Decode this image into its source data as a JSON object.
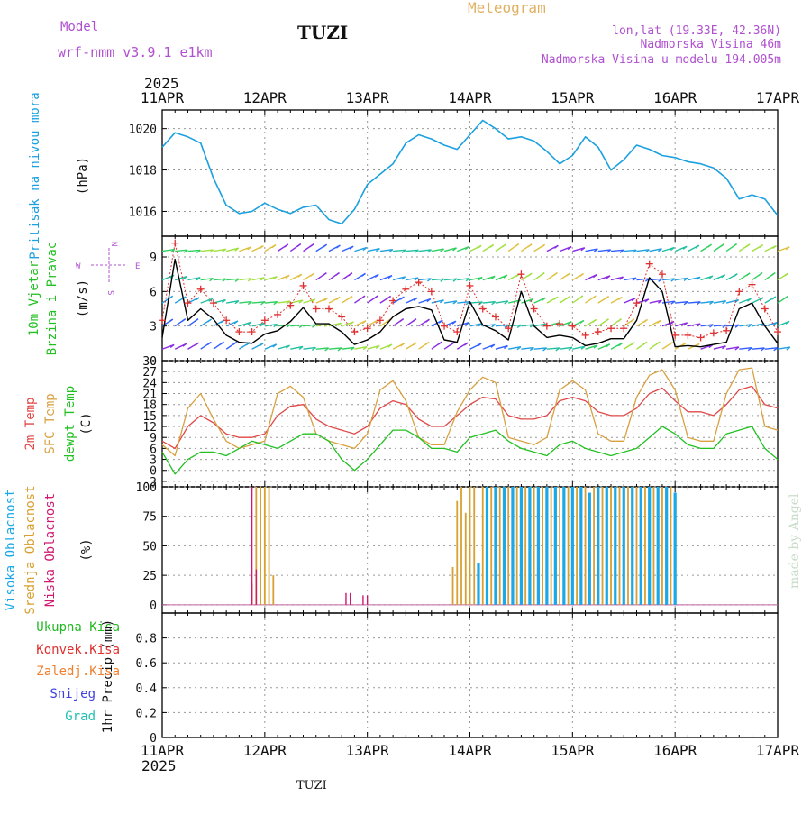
{
  "header": {
    "model_label": "Model",
    "model_name": "wrf-nmm_v3.9.1 e1km",
    "station_title": "TUZI",
    "product_title": "Meteogram",
    "lonlat": "lon,lat (19.33E, 42.36N)",
    "elevation": "Nadmorska Visina 46m",
    "model_elevation": "Nadmorska Visina u modelu 194.005m",
    "year": "2025",
    "footer_station": "TUZI",
    "credit": "made by Angel"
  },
  "colors": {
    "pressure": "#1ba0e0",
    "wind_speed": "#000000",
    "gust_marker": "#e03030",
    "temp_2m": "#e04848",
    "temp_sfc": "#d8a040",
    "dewpoint": "#22c022",
    "cloud_high": "#1aa8e8",
    "cloud_mid": "#d8a030",
    "cloud_low": "#d01870",
    "precip_total": "#22b822",
    "precip_conv": "#e03030",
    "precip_frozen": "#f08030",
    "snow": "#4040e0",
    "graupel": "#20c0b0",
    "header_purple": "#b050d0",
    "header_gold": "#e0b060"
  },
  "time_axis": {
    "labels": [
      "11APR",
      "12APR",
      "13APR",
      "14APR",
      "15APR",
      "16APR",
      "17APR"
    ]
  },
  "panels": {
    "pressure": {
      "ylabel_1": "Pritisak na nivou mora",
      "unit": "(hPa)"
    },
    "wind": {
      "ylabel_1": "10m Vjetar",
      "ylabel_2": "Brzina i Pravac",
      "unit": "(m/s)",
      "compass_w": "W",
      "compass_e": "E",
      "compass_n": "N",
      "compass_s": "S"
    },
    "temp": {
      "ylabel_1": "2m Temp",
      "ylabel_2": "SFC Temp",
      "ylabel_3": "dewpt Temp",
      "unit": "(C)"
    },
    "cloud": {
      "ylabel_1": "Visoka Oblacnost",
      "ylabel_2": "Srednja Oblacnost",
      "ylabel_3": "Niska Oblacnost",
      "unit": "(%)"
    },
    "precip": {
      "legend": [
        "Ukupna Kisa",
        "Konvek.Kisa",
        "Zaledj.Kisa",
        "Snijeg",
        "Grad"
      ],
      "ylabel": "1hr Precip (mm)"
    }
  },
  "chart_data": [
    {
      "type": "line",
      "title": "",
      "ylabel": "Pritisak na nivou mora (hPa)",
      "ylim": [
        1014.8,
        1020.9
      ],
      "yticks": [
        "1016",
        "1018",
        "1020"
      ],
      "x_hours": [
        0,
        3,
        6,
        9,
        12,
        15,
        18,
        21,
        24,
        27,
        30,
        33,
        36,
        39,
        42,
        45,
        48,
        51,
        54,
        57,
        60,
        63,
        66,
        69,
        72,
        75,
        78,
        81,
        84,
        87,
        90,
        93,
        96,
        99,
        102,
        105,
        108,
        111,
        114,
        117,
        120,
        123,
        126,
        129,
        132,
        135,
        138,
        141,
        144
      ],
      "series": [
        {
          "values": [
            1019.1,
            1019.8,
            1019.6,
            1019.3,
            1017.6,
            1016.3,
            1015.9,
            1016.0,
            1016.4,
            1016.1,
            1015.9,
            1016.2,
            1016.3,
            1015.6,
            1015.4,
            1016.1,
            1017.3,
            1017.8,
            1018.3,
            1019.3,
            1019.7,
            1019.5,
            1019.2,
            1019.0,
            1019.7,
            1020.4,
            1020.0,
            1019.5,
            1019.6,
            1019.4,
            1018.9,
            1018.3,
            1018.7,
            1019.6,
            1019.1,
            1018.0,
            1018.5,
            1019.2,
            1019.0,
            1018.7,
            1018.6,
            1018.4,
            1018.3,
            1018.1,
            1017.6,
            1016.6,
            1016.8,
            1016.6,
            1015.8
          ]
        }
      ]
    },
    {
      "type": "line",
      "title": "",
      "ylabel": "10m Vjetar Brzina i Pravac (m/s)",
      "ylim": [
        0,
        10.8
      ],
      "yticks": [
        "0",
        "3",
        "6",
        "9"
      ],
      "x_hours": [
        0,
        3,
        6,
        9,
        12,
        15,
        18,
        21,
        24,
        27,
        30,
        33,
        36,
        39,
        42,
        45,
        48,
        51,
        54,
        57,
        60,
        63,
        66,
        69,
        72,
        75,
        78,
        81,
        84,
        87,
        90,
        93,
        96,
        99,
        102,
        105,
        108,
        111,
        114,
        117,
        120,
        123,
        126,
        129,
        132,
        135,
        138,
        141,
        144
      ],
      "series": [
        {
          "name": "wind speed",
          "values": [
            2.0,
            8.8,
            3.5,
            4.5,
            3.6,
            2.2,
            1.6,
            1.5,
            2.3,
            2.6,
            3.4,
            4.6,
            3.2,
            3.2,
            2.5,
            1.4,
            1.8,
            2.5,
            3.8,
            4.5,
            4.7,
            4.4,
            1.8,
            1.6,
            5.1,
            3.1,
            2.6,
            1.8,
            6.0,
            3.0,
            2.0,
            2.2,
            2.0,
            1.3,
            1.5,
            1.9,
            1.9,
            3.5,
            7.2,
            6.0,
            1.2,
            1.3,
            1.2,
            1.4,
            1.6,
            4.5,
            5.0,
            3.0,
            1.5
          ]
        },
        {
          "name": "gusts",
          "values": [
            3.5,
            10.2,
            5.0,
            6.2,
            5.0,
            3.5,
            2.5,
            2.5,
            3.5,
            4.0,
            4.8,
            6.5,
            4.5,
            4.5,
            3.8,
            2.5,
            2.8,
            3.5,
            5.2,
            6.2,
            6.8,
            6.0,
            3.0,
            2.5,
            6.5,
            4.5,
            3.8,
            2.8,
            7.5,
            4.5,
            3.0,
            3.2,
            3.0,
            2.2,
            2.5,
            2.8,
            2.8,
            5.0,
            8.4,
            7.5,
            2.2,
            2.2,
            2.0,
            2.4,
            2.6,
            6.0,
            6.6,
            4.5,
            2.5
          ]
        }
      ]
    },
    {
      "type": "line",
      "title": "",
      "ylabel": "2m Temp / SFC Temp / dewpt Temp (C)",
      "ylim": [
        -4.5,
        30
      ],
      "yticks": [
        "-3",
        "0",
        "3",
        "6",
        "9",
        "12",
        "15",
        "18",
        "21",
        "24",
        "27",
        "30"
      ],
      "x_hours": [
        0,
        3,
        6,
        9,
        12,
        15,
        18,
        21,
        24,
        27,
        30,
        33,
        36,
        39,
        42,
        45,
        48,
        51,
        54,
        57,
        60,
        63,
        66,
        69,
        72,
        75,
        78,
        81,
        84,
        87,
        90,
        93,
        96,
        99,
        102,
        105,
        108,
        111,
        114,
        117,
        120,
        123,
        126,
        129,
        132,
        135,
        138,
        141,
        144
      ],
      "series": [
        {
          "name": "2m Temp",
          "values": [
            8,
            6,
            12,
            15,
            13,
            10,
            9,
            9,
            10,
            15,
            17.5,
            18,
            14,
            12,
            11,
            10,
            12,
            17,
            19,
            18,
            14,
            12,
            12,
            15,
            18,
            20,
            19.5,
            15,
            14,
            14,
            15,
            19,
            20,
            19,
            16,
            15,
            15,
            17,
            21,
            22.5,
            19,
            16,
            16,
            15,
            18,
            22,
            23,
            18,
            17
          ]
        },
        {
          "name": "SFC Temp",
          "values": [
            7,
            4,
            17,
            21,
            14,
            8,
            6,
            7,
            8,
            21,
            23,
            20,
            10,
            8,
            7,
            6,
            10,
            22,
            24.5,
            19,
            9,
            7,
            7,
            16,
            22,
            25.5,
            24,
            9,
            8,
            7,
            9,
            22,
            24.5,
            22,
            10,
            8,
            8,
            20,
            26,
            27.5,
            22,
            9,
            8,
            8,
            21,
            27.5,
            28,
            12,
            11
          ]
        },
        {
          "name": "dewpt Temp",
          "values": [
            5,
            -1,
            3,
            5,
            5,
            4,
            6,
            8,
            7,
            6,
            8,
            10,
            10,
            8,
            3,
            0,
            3,
            7,
            11,
            11,
            9,
            6,
            6,
            5,
            9,
            10,
            11,
            8,
            6,
            5,
            4,
            7,
            8,
            6,
            5,
            4,
            5,
            6,
            9,
            12,
            10,
            7,
            6,
            6,
            10,
            11,
            12,
            6,
            3
          ]
        }
      ]
    },
    {
      "type": "bar",
      "title": "",
      "ylabel": "Visoka / Srednja / Niska Oblacnost (%)",
      "ylim": [
        -7,
        100
      ],
      "yticks": [
        "0",
        "25",
        "50",
        "75",
        "100"
      ],
      "series": [
        {
          "name": "Visoka Oblacnost",
          "hours": [
            74,
            76,
            78,
            80,
            82,
            84,
            86,
            88,
            90,
            92,
            94,
            96,
            98,
            100,
            102,
            104,
            106,
            108,
            110,
            112,
            114,
            116,
            118,
            120
          ],
          "values": [
            35,
            100,
            100,
            100,
            100,
            100,
            100,
            100,
            100,
            100,
            100,
            100,
            100,
            95,
            100,
            100,
            100,
            100,
            100,
            100,
            100,
            100,
            100,
            95
          ]
        },
        {
          "name": "Srednja Oblacnost",
          "hours": [
            21,
            22,
            23,
            24,
            25,
            26,
            68,
            69,
            70,
            71,
            72,
            73,
            75,
            77,
            79,
            81,
            83,
            85,
            87,
            89,
            91,
            93,
            95,
            97,
            99,
            101,
            103,
            105,
            107,
            109,
            111,
            113,
            115,
            117,
            119
          ],
          "values": [
            18,
            100,
            100,
            100,
            100,
            25,
            32,
            88,
            100,
            78,
            100,
            100,
            100,
            100,
            100,
            100,
            100,
            100,
            100,
            100,
            100,
            100,
            100,
            100,
            100,
            100,
            100,
            100,
            100,
            100,
            100,
            100,
            100,
            100,
            100
          ]
        },
        {
          "name": "Niska Oblacnost",
          "hours": [
            21,
            22,
            43,
            44,
            47,
            48
          ],
          "values": [
            100,
            30,
            10,
            10,
            8,
            8
          ]
        }
      ]
    },
    {
      "type": "bar",
      "title": "",
      "ylabel": "1hr Precip (mm)",
      "ylim": [
        0,
        1.0
      ],
      "yticks": [
        "0",
        "0.2",
        "0.4",
        "0.6",
        "0.8"
      ],
      "series": [
        {
          "name": "Ukupna Kisa",
          "values": []
        },
        {
          "name": "Konvek.Kisa",
          "values": []
        },
        {
          "name": "Zaledj.Kisa",
          "values": []
        },
        {
          "name": "Snijeg",
          "values": []
        },
        {
          "name": "Grad",
          "values": []
        }
      ]
    }
  ]
}
